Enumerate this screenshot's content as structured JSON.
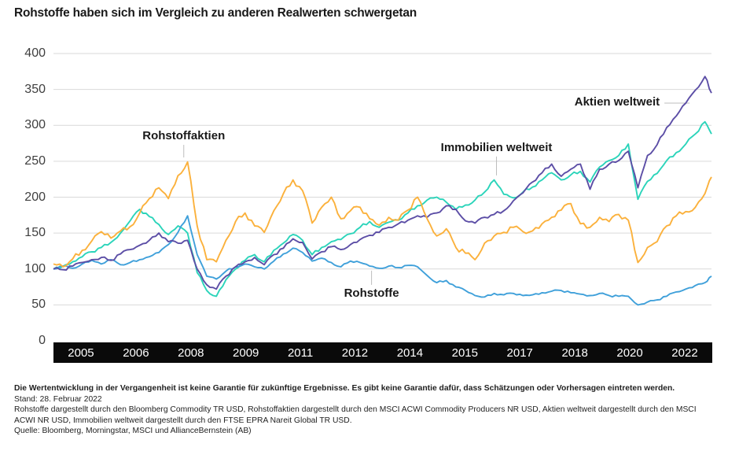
{
  "chart_data": {
    "type": "line",
    "title": "Rohstoffe haben sich im Vergleich zu anderen Realwerten schwergetan",
    "xlabel": "",
    "ylabel": "",
    "xlim": [
      2005.0,
      2022.17
    ],
    "ylim": [
      0,
      400
    ],
    "yticks": [
      0,
      50,
      100,
      150,
      200,
      250,
      300,
      350,
      400
    ],
    "xtick_labels": [
      "2005",
      "2006",
      "2008",
      "2009",
      "2011",
      "2012",
      "2014",
      "2015",
      "2017",
      "2018",
      "2020",
      "2022"
    ],
    "grid": true,
    "legend_position": "inline-annotations",
    "x": [
      2005.0,
      2005.25,
      2005.5,
      2005.75,
      2006.0,
      2006.25,
      2006.5,
      2006.75,
      2007.0,
      2007.25,
      2007.5,
      2007.75,
      2008.0,
      2008.25,
      2008.5,
      2008.75,
      2009.0,
      2009.25,
      2009.5,
      2009.75,
      2010.0,
      2010.25,
      2010.5,
      2010.75,
      2011.0,
      2011.25,
      2011.5,
      2011.75,
      2012.0,
      2012.25,
      2012.5,
      2012.75,
      2013.0,
      2013.25,
      2013.5,
      2013.75,
      2014.0,
      2014.25,
      2014.5,
      2014.75,
      2015.0,
      2015.25,
      2015.5,
      2015.75,
      2016.0,
      2016.25,
      2016.5,
      2016.75,
      2017.0,
      2017.25,
      2017.5,
      2017.75,
      2018.0,
      2018.25,
      2018.5,
      2018.75,
      2019.0,
      2019.25,
      2019.5,
      2019.75,
      2020.0,
      2020.25,
      2020.5,
      2020.75,
      2021.0,
      2021.25,
      2021.5,
      2021.75,
      2022.0,
      2022.17
    ],
    "series": [
      {
        "key": "rohstoffaktien",
        "name": "Rohstoffaktien",
        "color": "#FBB13C",
        "values": [
          107,
          103,
          114,
          126,
          139,
          152,
          143,
          153,
          159,
          178,
          198,
          213,
          198,
          230,
          249,
          160,
          113,
          110,
          140,
          166,
          178,
          160,
          151,
          181,
          205,
          224,
          209,
          164,
          186,
          200,
          170,
          181,
          186,
          170,
          161,
          172,
          168,
          182,
          200,
          170,
          146,
          156,
          130,
          122,
          113,
          136,
          146,
          151,
          158,
          152,
          153,
          163,
          172,
          182,
          191,
          163,
          158,
          172,
          166,
          176,
          168,
          109,
          130,
          138,
          160,
          174,
          180,
          186,
          205,
          228
        ]
      },
      {
        "key": "aktien-weltweit",
        "name": "Aktien weltweit",
        "color": "#5C4EA6",
        "values": [
          100,
          99,
          104,
          109,
          113,
          116,
          112,
          121,
          127,
          133,
          140,
          150,
          138,
          136,
          140,
          100,
          78,
          72,
          90,
          103,
          110,
          116,
          106,
          120,
          129,
          142,
          137,
          114,
          124,
          131,
          127,
          134,
          141,
          147,
          151,
          158,
          163,
          168,
          174,
          172,
          178,
          188,
          183,
          167,
          164,
          172,
          176,
          181,
          195,
          206,
          221,
          234,
          246,
          229,
          239,
          246,
          211,
          239,
          246,
          251,
          264,
          213,
          258,
          273,
          297,
          313,
          331,
          349,
          368,
          345
        ]
      },
      {
        "key": "immobilien-weltweit",
        "name": "Immobilien weltweit",
        "color": "#2BD4BA",
        "values": [
          100,
          104,
          110,
          117,
          124,
          130,
          137,
          150,
          167,
          183,
          173,
          162,
          148,
          160,
          150,
          95,
          70,
          62,
          85,
          100,
          112,
          120,
          110,
          126,
          136,
          148,
          140,
          120,
          130,
          138,
          141,
          149,
          158,
          166,
          158,
          165,
          168,
          178,
          188,
          196,
          200,
          193,
          183,
          189,
          196,
          207,
          224,
          204,
          199,
          207,
          214,
          224,
          234,
          224,
          231,
          236,
          221,
          242,
          251,
          258,
          274,
          197,
          222,
          233,
          251,
          262,
          274,
          288,
          305,
          288
        ]
      },
      {
        "key": "rohstoffe",
        "name": "Rohstoffe",
        "color": "#3FA0DA",
        "values": [
          100,
          104,
          101,
          107,
          112,
          107,
          113,
          106,
          109,
          113,
          117,
          123,
          134,
          151,
          174,
          120,
          90,
          86,
          97,
          103,
          107,
          103,
          100,
          111,
          121,
          129,
          123,
          111,
          115,
          109,
          103,
          111,
          109,
          104,
          101,
          104,
          102,
          105,
          103,
          91,
          81,
          84,
          75,
          70,
          63,
          61,
          66,
          64,
          66,
          63,
          64,
          67,
          69,
          70,
          67,
          65,
          63,
          66,
          63,
          62,
          62,
          50,
          54,
          57,
          62,
          68,
          72,
          77,
          81,
          90
        ]
      }
    ],
    "annotations": [
      {
        "key": "rohstoffaktien",
        "label": "Rohstoffaktien",
        "t": 2008.4,
        "v": 252,
        "dir": "above",
        "len": 16
      },
      {
        "key": "immobilien-weltweit",
        "label": "Immobilien weltweit",
        "t": 2016.56,
        "v": 227,
        "dir": "above",
        "len": 24
      },
      {
        "key": "aktien-weltweit",
        "label": "Aktien weltweit",
        "t": 2021.68,
        "v": 331,
        "dir": "left",
        "len": 32
      },
      {
        "key": "rohstoffe",
        "label": "Rohstoffe",
        "t": 2013.3,
        "v": 102,
        "dir": "below",
        "len": 18
      }
    ]
  },
  "footnotes": {
    "disclaimer": "Die Wertentwicklung in der Vergangenheit ist keine Garantie für zukünftige Ergebnisse. Es gibt keine Garantie dafür, dass Schätzungen oder Vorhersagen eintreten werden.",
    "stand": "Stand: 28. Februar 2022",
    "description": "Rohstoffe dargestellt durch den Bloomberg Commodity TR USD, Rohstoffaktien dargestellt durch den MSCI ACWI Commodity Producers NR USD, Aktien weltweit dargestellt durch den MSCI ACWI NR USD, Immobilien weltweit dargestellt durch den FTSE EPRA Nareit Global TR USD.",
    "quelle": "Quelle: Bloomberg, Morningstar, MSCI und AllianceBernstein (AB)"
  },
  "colors": {
    "grid": "#D9D9D9",
    "callout": "#BDBDBD",
    "axis_band": "#0A0A0A",
    "tick_text": "#3F3F3F"
  }
}
